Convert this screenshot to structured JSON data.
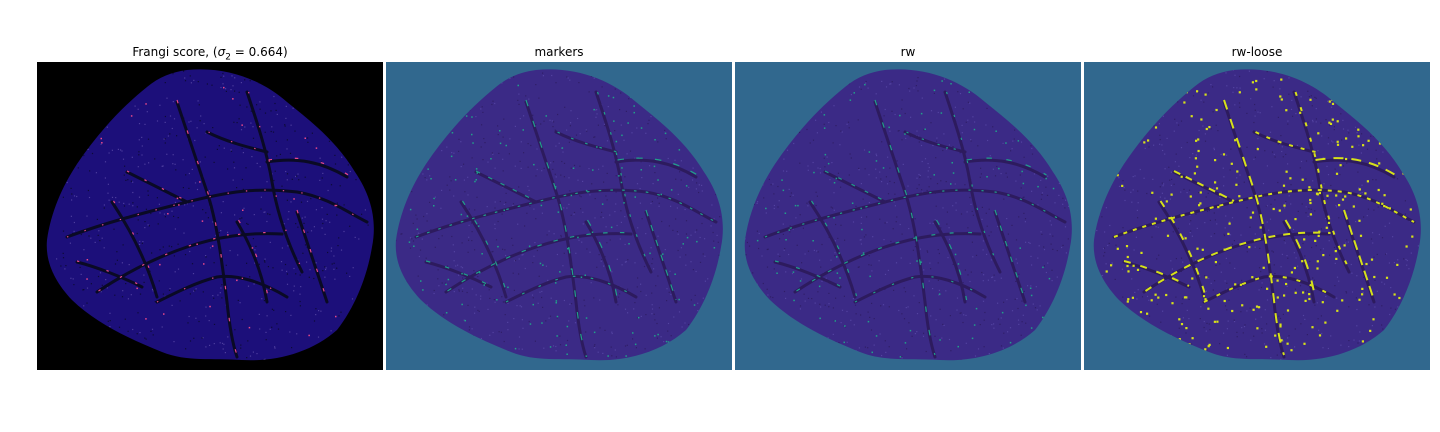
{
  "panels": [
    {
      "title_prefix": "Frangi score, (",
      "title_symbol": "σ",
      "title_subscript": "2",
      "title_suffix": " = 0.664)",
      "background": "#000000",
      "mask_color": "#1c0f7a",
      "vessel_color": "#0a0a24",
      "highlight_color": "#e8488a"
    },
    {
      "title": "markers",
      "background": "#31688e",
      "mask_color": "#3b2a86",
      "vessel_color": "#2d1b5e",
      "highlight_color": "#21a08a"
    },
    {
      "title": "rw",
      "background": "#31688e",
      "mask_color": "#3b2a86",
      "vessel_color": "#2d1b5e",
      "highlight_color": "#21a08a"
    },
    {
      "title": "rw-loose",
      "background": "#31688e",
      "mask_color": "#3b2a86",
      "vessel_color": "#2d1b5e",
      "highlight_color": "#d7e219"
    }
  ]
}
